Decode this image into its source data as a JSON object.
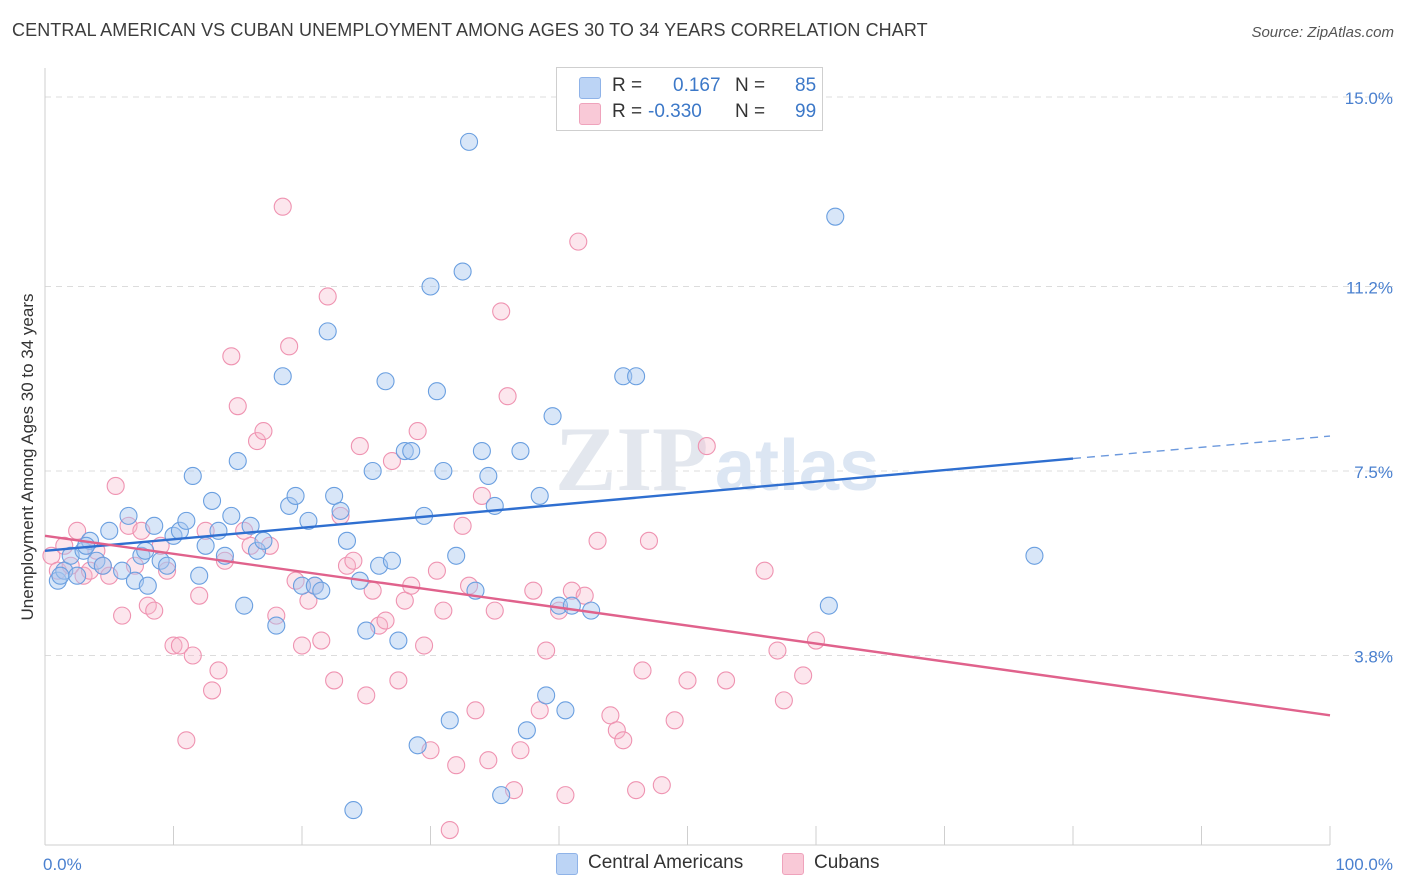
{
  "title": "CENTRAL AMERICAN VS CUBAN UNEMPLOYMENT AMONG AGES 30 TO 34 YEARS CORRELATION CHART",
  "source": "Source: ZipAtlas.com",
  "watermark": "ZIPatlas",
  "legend": {
    "rows": [
      {
        "r_label": "R =",
        "r_value": "0.167",
        "n_label": "N =",
        "n_value": "85",
        "color": "#a8c8f0"
      },
      {
        "r_label": "R =",
        "r_value": "-0.330",
        "n_label": "N =",
        "n_value": "99",
        "color": "#f5b8cb"
      }
    ]
  },
  "bottom_legend": [
    {
      "label": "Central Americans",
      "color": "#a8c8f0"
    },
    {
      "label": "Cubans",
      "color": "#f5b8cb"
    }
  ],
  "chart_data": {
    "type": "scatter",
    "title": "CENTRAL AMERICAN VS CUBAN UNEMPLOYMENT AMONG AGES 30 TO 34 YEARS CORRELATION CHART",
    "xlabel": "",
    "ylabel": "Unemployment Among Ages 30 to 34 years",
    "xlim": [
      0,
      100
    ],
    "ylim": [
      0,
      15.0
    ],
    "x_tick_labels": [
      "0.0%",
      "100.0%"
    ],
    "y_ticks": [
      3.8,
      7.5,
      11.2,
      15.0
    ],
    "y_tick_labels": [
      "3.8%",
      "7.5%",
      "11.2%",
      "15.0%"
    ],
    "grid": true,
    "legend_position": "top-center",
    "series": [
      {
        "name": "Central Americans",
        "color": "#6a9fe0",
        "trend": {
          "x": [
            0,
            80
          ],
          "y": [
            5.9,
            7.75
          ],
          "dashed_extension": {
            "x": [
              80,
              100
            ],
            "y": [
              7.75,
              8.2
            ]
          },
          "color": "#2f6fd0"
        },
        "points": [
          [
            1,
            5.3
          ],
          [
            1.5,
            5.5
          ],
          [
            2,
            5.8
          ],
          [
            2.5,
            5.4
          ],
          [
            3,
            5.9
          ],
          [
            3.5,
            6.1
          ],
          [
            4,
            5.7
          ],
          [
            4.5,
            5.6
          ],
          [
            5,
            6.3
          ],
          [
            6,
            5.5
          ],
          [
            6.5,
            6.6
          ],
          [
            7,
            5.3
          ],
          [
            7.5,
            5.8
          ],
          [
            8,
            5.2
          ],
          [
            8.5,
            6.4
          ],
          [
            9,
            5.7
          ],
          [
            10,
            6.2
          ],
          [
            10.5,
            6.3
          ],
          [
            11,
            6.5
          ],
          [
            11.5,
            7.4
          ],
          [
            12,
            5.4
          ],
          [
            12.5,
            6.0
          ],
          [
            13,
            6.9
          ],
          [
            13.5,
            6.3
          ],
          [
            14,
            5.8
          ],
          [
            14.5,
            6.6
          ],
          [
            15,
            7.7
          ],
          [
            15.5,
            4.8
          ],
          [
            16,
            6.4
          ],
          [
            16.5,
            5.9
          ],
          [
            17,
            6.1
          ],
          [
            18,
            4.4
          ],
          [
            18.5,
            9.4
          ],
          [
            19,
            6.8
          ],
          [
            19.5,
            7.0
          ],
          [
            20,
            5.2
          ],
          [
            20.5,
            6.5
          ],
          [
            21,
            5.2
          ],
          [
            21.5,
            5.1
          ],
          [
            22,
            10.3
          ],
          [
            22.5,
            7.0
          ],
          [
            23,
            6.7
          ],
          [
            23.5,
            6.1
          ],
          [
            24,
            0.7
          ],
          [
            24.5,
            5.3
          ],
          [
            25,
            4.3
          ],
          [
            25.5,
            7.5
          ],
          [
            26,
            5.6
          ],
          [
            26.5,
            9.3
          ],
          [
            27,
            5.7
          ],
          [
            27.5,
            4.1
          ],
          [
            28,
            7.9
          ],
          [
            28.5,
            7.9
          ],
          [
            29,
            2.0
          ],
          [
            29.5,
            6.6
          ],
          [
            30,
            11.2
          ],
          [
            30.5,
            9.1
          ],
          [
            31,
            7.5
          ],
          [
            31.5,
            2.5
          ],
          [
            32,
            5.8
          ],
          [
            32.5,
            11.5
          ],
          [
            33,
            14.1
          ],
          [
            33.5,
            5.1
          ],
          [
            34,
            7.9
          ],
          [
            34.5,
            7.4
          ],
          [
            35,
            6.8
          ],
          [
            35.5,
            1.0
          ],
          [
            37,
            7.9
          ],
          [
            37.5,
            2.3
          ],
          [
            38.5,
            7.0
          ],
          [
            39,
            3.0
          ],
          [
            39.5,
            8.6
          ],
          [
            40,
            4.8
          ],
          [
            40.5,
            2.7
          ],
          [
            41,
            4.8
          ],
          [
            42.5,
            4.7
          ],
          [
            45,
            9.4
          ],
          [
            46,
            9.4
          ],
          [
            61,
            4.8
          ],
          [
            61.5,
            12.6
          ],
          [
            77,
            5.8
          ],
          [
            9.5,
            5.6
          ],
          [
            3.2,
            6.0
          ],
          [
            7.8,
            5.9
          ],
          [
            1.2,
            5.4
          ]
        ]
      },
      {
        "name": "Cubans",
        "color": "#f08aaa",
        "trend": {
          "x": [
            0,
            100
          ],
          "y": [
            6.2,
            2.6
          ],
          "color": "#e0628c"
        },
        "points": [
          [
            0.5,
            5.8
          ],
          [
            1,
            5.5
          ],
          [
            1.5,
            6.0
          ],
          [
            2,
            5.6
          ],
          [
            2.5,
            6.3
          ],
          [
            3,
            5.4
          ],
          [
            3.5,
            5.5
          ],
          [
            4,
            5.9
          ],
          [
            4.5,
            5.6
          ],
          [
            5,
            5.4
          ],
          [
            5.5,
            7.2
          ],
          [
            6,
            4.6
          ],
          [
            6.5,
            6.4
          ],
          [
            7,
            5.6
          ],
          [
            7.5,
            6.3
          ],
          [
            8,
            4.8
          ],
          [
            8.5,
            4.7
          ],
          [
            9,
            6.0
          ],
          [
            9.5,
            5.5
          ],
          [
            10,
            4.0
          ],
          [
            10.5,
            4.0
          ],
          [
            11,
            2.1
          ],
          [
            11.5,
            3.8
          ],
          [
            12,
            5.0
          ],
          [
            12.5,
            6.3
          ],
          [
            13,
            3.1
          ],
          [
            13.5,
            3.5
          ],
          [
            14,
            5.7
          ],
          [
            14.5,
            9.8
          ],
          [
            15,
            8.8
          ],
          [
            15.5,
            6.3
          ],
          [
            16,
            6.0
          ],
          [
            16.5,
            8.1
          ],
          [
            17,
            8.3
          ],
          [
            17.5,
            6.0
          ],
          [
            18,
            4.6
          ],
          [
            18.5,
            12.8
          ],
          [
            19,
            10.0
          ],
          [
            19.5,
            5.3
          ],
          [
            20,
            4.0
          ],
          [
            20.5,
            4.9
          ],
          [
            21,
            5.2
          ],
          [
            21.5,
            4.1
          ],
          [
            22,
            11.0
          ],
          [
            22.5,
            3.3
          ],
          [
            23,
            6.6
          ],
          [
            23.5,
            5.6
          ],
          [
            24,
            5.7
          ],
          [
            24.5,
            8.0
          ],
          [
            25,
            3.0
          ],
          [
            25.5,
            5.1
          ],
          [
            26,
            4.4
          ],
          [
            26.5,
            4.5
          ],
          [
            27,
            7.7
          ],
          [
            27.5,
            3.3
          ],
          [
            28,
            4.9
          ],
          [
            28.5,
            5.2
          ],
          [
            29,
            8.3
          ],
          [
            29.5,
            4.0
          ],
          [
            30,
            1.9
          ],
          [
            30.5,
            5.5
          ],
          [
            31,
            4.7
          ],
          [
            31.5,
            0.3
          ],
          [
            32,
            1.6
          ],
          [
            32.5,
            6.4
          ],
          [
            33,
            5.2
          ],
          [
            33.5,
            2.7
          ],
          [
            34,
            7.0
          ],
          [
            34.5,
            1.7
          ],
          [
            35,
            4.7
          ],
          [
            35.5,
            10.7
          ],
          [
            36,
            9.0
          ],
          [
            36.5,
            1.1
          ],
          [
            37,
            1.9
          ],
          [
            38,
            5.1
          ],
          [
            38.5,
            2.7
          ],
          [
            39,
            3.9
          ],
          [
            40,
            4.7
          ],
          [
            40.5,
            1.0
          ],
          [
            41,
            5.1
          ],
          [
            41.5,
            12.1
          ],
          [
            42,
            5.0
          ],
          [
            43,
            6.1
          ],
          [
            44,
            2.6
          ],
          [
            44.5,
            2.3
          ],
          [
            45,
            2.1
          ],
          [
            46,
            1.1
          ],
          [
            46.5,
            3.5
          ],
          [
            47,
            6.1
          ],
          [
            48,
            1.2
          ],
          [
            49,
            2.5
          ],
          [
            50,
            3.3
          ],
          [
            51.5,
            8.0
          ],
          [
            53,
            3.3
          ],
          [
            56,
            5.5
          ],
          [
            57,
            3.9
          ],
          [
            57.5,
            2.9
          ],
          [
            59,
            3.4
          ],
          [
            60,
            4.1
          ]
        ]
      }
    ]
  }
}
